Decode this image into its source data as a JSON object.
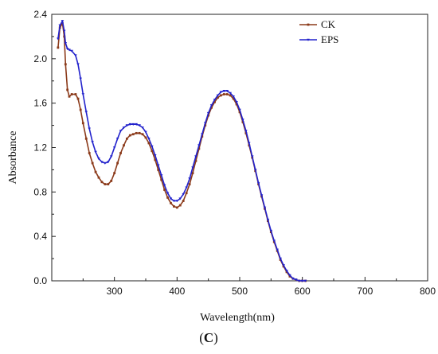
{
  "chart_data": {
    "type": "line",
    "xlabel": "Wavelength(nm)",
    "ylabel": "Absorbance",
    "panel_label_open": "(",
    "panel_label_letter": "C",
    "panel_label_close": ")",
    "xlim": [
      200,
      800
    ],
    "ylim": [
      0.0,
      2.4
    ],
    "xticks": [
      300,
      400,
      500,
      600,
      700,
      800
    ],
    "yticks": [
      0.0,
      0.4,
      0.8,
      1.2,
      1.6,
      2.0,
      2.4
    ],
    "ytick_labels": [
      "0.0",
      "0.4",
      "0.8",
      "1.2",
      "1.6",
      "2.0",
      "2.4"
    ],
    "grid": false,
    "legend_position": "top-right",
    "series": [
      {
        "name": "CK",
        "color": "#8B3A1A",
        "marker": "square",
        "x": [
          210,
          213,
          217,
          220,
          222,
          225,
          228,
          232,
          238,
          242,
          246,
          250,
          255,
          260,
          265,
          270,
          275,
          280,
          285,
          290,
          295,
          300,
          305,
          310,
          315,
          320,
          325,
          330,
          335,
          340,
          345,
          350,
          355,
          360,
          365,
          370,
          375,
          380,
          385,
          390,
          395,
          400,
          405,
          410,
          415,
          420,
          425,
          430,
          435,
          440,
          445,
          450,
          455,
          460,
          465,
          470,
          475,
          480,
          485,
          490,
          495,
          500,
          505,
          510,
          515,
          520,
          525,
          530,
          535,
          540,
          545,
          550,
          555,
          560,
          565,
          570,
          575,
          580,
          585,
          590,
          595,
          600,
          605
        ],
        "y": [
          2.1,
          2.28,
          2.32,
          2.2,
          1.95,
          1.72,
          1.66,
          1.68,
          1.68,
          1.64,
          1.54,
          1.42,
          1.28,
          1.15,
          1.06,
          0.98,
          0.93,
          0.89,
          0.87,
          0.87,
          0.9,
          0.97,
          1.06,
          1.15,
          1.22,
          1.28,
          1.31,
          1.32,
          1.33,
          1.33,
          1.32,
          1.29,
          1.24,
          1.17,
          1.09,
          1.0,
          0.91,
          0.82,
          0.75,
          0.7,
          0.67,
          0.66,
          0.68,
          0.72,
          0.79,
          0.87,
          0.97,
          1.08,
          1.19,
          1.3,
          1.4,
          1.49,
          1.56,
          1.61,
          1.65,
          1.67,
          1.68,
          1.68,
          1.67,
          1.64,
          1.59,
          1.52,
          1.43,
          1.33,
          1.22,
          1.11,
          0.99,
          0.87,
          0.76,
          0.65,
          0.54,
          0.44,
          0.35,
          0.27,
          0.19,
          0.13,
          0.08,
          0.04,
          0.02,
          0.01,
          0.0,
          0.0,
          0.0
        ]
      },
      {
        "name": "EPS",
        "color": "#2222CC",
        "marker": "triangle",
        "x": [
          210,
          213,
          217,
          220,
          222,
          225,
          228,
          232,
          238,
          242,
          246,
          250,
          255,
          260,
          265,
          270,
          275,
          280,
          285,
          290,
          295,
          300,
          305,
          310,
          315,
          320,
          325,
          330,
          335,
          340,
          345,
          350,
          355,
          360,
          365,
          370,
          375,
          380,
          385,
          390,
          395,
          400,
          405,
          410,
          415,
          420,
          425,
          430,
          435,
          440,
          445,
          450,
          455,
          460,
          465,
          470,
          475,
          480,
          485,
          490,
          495,
          500,
          505,
          510,
          515,
          520,
          525,
          530,
          535,
          540,
          545,
          550,
          555,
          560,
          565,
          570,
          575,
          580,
          585,
          590,
          595,
          600,
          605
        ],
        "y": [
          2.18,
          2.3,
          2.34,
          2.25,
          2.14,
          2.09,
          2.08,
          2.07,
          2.03,
          1.95,
          1.82,
          1.68,
          1.52,
          1.37,
          1.25,
          1.16,
          1.1,
          1.07,
          1.06,
          1.07,
          1.12,
          1.2,
          1.28,
          1.35,
          1.38,
          1.4,
          1.41,
          1.41,
          1.41,
          1.4,
          1.38,
          1.34,
          1.28,
          1.21,
          1.13,
          1.04,
          0.95,
          0.86,
          0.79,
          0.74,
          0.72,
          0.72,
          0.74,
          0.78,
          0.84,
          0.92,
          1.02,
          1.12,
          1.22,
          1.32,
          1.42,
          1.51,
          1.58,
          1.63,
          1.67,
          1.7,
          1.71,
          1.71,
          1.69,
          1.66,
          1.61,
          1.54,
          1.45,
          1.35,
          1.24,
          1.12,
          1.0,
          0.88,
          0.77,
          0.66,
          0.55,
          0.45,
          0.36,
          0.28,
          0.2,
          0.14,
          0.09,
          0.05,
          0.02,
          0.01,
          0.0,
          0.0,
          0.0
        ]
      }
    ]
  }
}
